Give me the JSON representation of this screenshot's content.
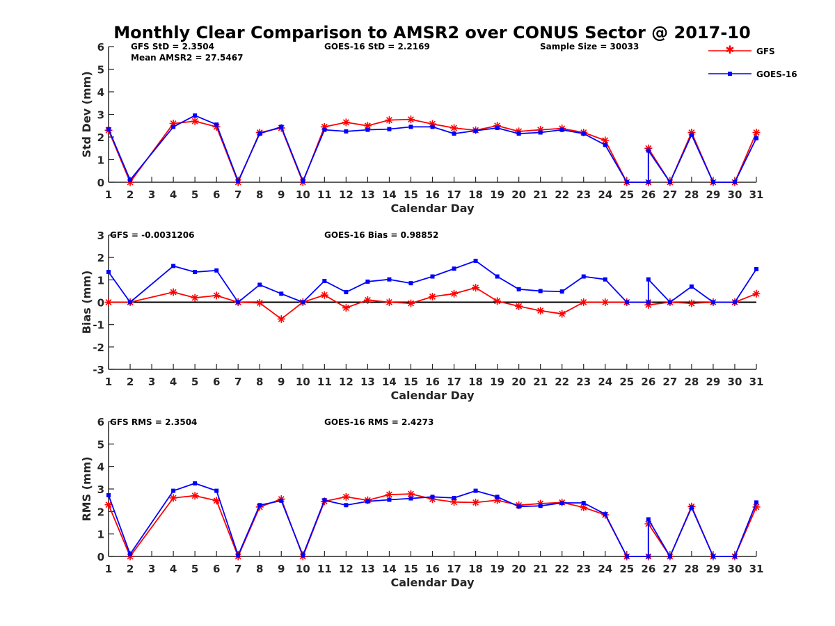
{
  "figure": {
    "title": "Monthly Clear Comparison to AMSR2 over CONUS Sector @ 2017-10"
  },
  "legend": {
    "placement": "top-right",
    "entries": [
      {
        "label": "GFS",
        "color": "#ff0000",
        "marker": "asterisk"
      },
      {
        "label": "GOES-16",
        "color": "#0000ff",
        "marker": "square"
      }
    ]
  },
  "chart_data": [
    {
      "type": "line",
      "xlabel": "Calendar Day",
      "ylabel": "Std Dev (mm)",
      "xlim": [
        1,
        31
      ],
      "ylim": [
        0,
        6
      ],
      "x_ticks": [
        1,
        2,
        3,
        4,
        5,
        6,
        7,
        8,
        9,
        10,
        11,
        12,
        13,
        14,
        15,
        16,
        17,
        18,
        19,
        20,
        21,
        22,
        23,
        24,
        25,
        26,
        27,
        28,
        29,
        30,
        31
      ],
      "y_ticks": [
        0,
        1,
        2,
        3,
        4,
        5,
        6
      ],
      "zero_line": false,
      "annotations": [
        "GFS StD = 2.3504",
        "Mean AMSR2 = 27.5467",
        "GOES-16 StD = 2.2169",
        "Sample Size = 30033"
      ],
      "series": [
        {
          "name": "GFS",
          "color": "#ff0000",
          "marker": "asterisk",
          "points": [
            [
              1,
              2.3
            ],
            [
              2,
              0.0
            ],
            [
              4,
              2.6
            ],
            [
              5,
              2.7
            ],
            [
              6,
              2.45
            ],
            [
              7,
              0.0
            ],
            [
              8,
              2.2
            ],
            [
              9,
              2.4
            ],
            [
              10,
              0.0
            ],
            [
              11,
              2.45
            ],
            [
              12,
              2.65
            ],
            [
              13,
              2.5
            ],
            [
              14,
              2.75
            ],
            [
              15,
              2.78
            ],
            [
              16,
              2.58
            ],
            [
              17,
              2.4
            ],
            [
              18,
              2.3
            ],
            [
              19,
              2.5
            ],
            [
              20,
              2.25
            ],
            [
              21,
              2.32
            ],
            [
              22,
              2.38
            ],
            [
              23,
              2.2
            ],
            [
              24,
              1.85
            ],
            [
              25,
              0.0
            ],
            [
              26,
              0.0
            ],
            [
              26,
              1.5
            ],
            [
              27,
              0.0
            ],
            [
              28,
              2.2
            ],
            [
              29,
              0.0
            ],
            [
              30,
              0.0
            ],
            [
              31,
              2.2
            ]
          ]
        },
        {
          "name": "GOES-16",
          "color": "#0000ff",
          "marker": "square",
          "points": [
            [
              1,
              2.35
            ],
            [
              2,
              0.1
            ],
            [
              4,
              2.45
            ],
            [
              5,
              2.95
            ],
            [
              6,
              2.55
            ],
            [
              7,
              0.05
            ],
            [
              8,
              2.15
            ],
            [
              9,
              2.45
            ],
            [
              10,
              0.05
            ],
            [
              11,
              2.32
            ],
            [
              12,
              2.25
            ],
            [
              13,
              2.32
            ],
            [
              14,
              2.35
            ],
            [
              15,
              2.45
            ],
            [
              16,
              2.45
            ],
            [
              17,
              2.15
            ],
            [
              18,
              2.28
            ],
            [
              19,
              2.4
            ],
            [
              20,
              2.15
            ],
            [
              21,
              2.2
            ],
            [
              22,
              2.32
            ],
            [
              23,
              2.15
            ],
            [
              24,
              1.65
            ],
            [
              25,
              0.0
            ],
            [
              26,
              0.0
            ],
            [
              26,
              1.4
            ],
            [
              27,
              0.0
            ],
            [
              28,
              2.1
            ],
            [
              29,
              0.0
            ],
            [
              30,
              0.0
            ],
            [
              31,
              1.95
            ]
          ]
        }
      ]
    },
    {
      "type": "line",
      "xlabel": "Calendar Day",
      "ylabel": "Bias (mm)",
      "xlim": [
        1,
        31
      ],
      "ylim": [
        -3,
        3
      ],
      "x_ticks": [
        1,
        2,
        3,
        4,
        5,
        6,
        7,
        8,
        9,
        10,
        11,
        12,
        13,
        14,
        15,
        16,
        17,
        18,
        19,
        20,
        21,
        22,
        23,
        24,
        25,
        26,
        27,
        28,
        29,
        30,
        31
      ],
      "y_ticks": [
        -3,
        -2,
        -1,
        0,
        1,
        2,
        3
      ],
      "zero_line": true,
      "annotations": [
        "GFS = -0.0031206",
        "GOES-16 Bias = 0.98852"
      ],
      "series": [
        {
          "name": "GFS",
          "color": "#ff0000",
          "marker": "asterisk",
          "points": [
            [
              1,
              0.0
            ],
            [
              2,
              0.0
            ],
            [
              4,
              0.45
            ],
            [
              5,
              0.2
            ],
            [
              6,
              0.3
            ],
            [
              7,
              0.0
            ],
            [
              8,
              -0.03
            ],
            [
              9,
              -0.75
            ],
            [
              10,
              0.0
            ],
            [
              11,
              0.32
            ],
            [
              12,
              -0.25
            ],
            [
              13,
              0.1
            ],
            [
              14,
              0.0
            ],
            [
              15,
              -0.05
            ],
            [
              16,
              0.25
            ],
            [
              17,
              0.38
            ],
            [
              18,
              0.65
            ],
            [
              19,
              0.05
            ],
            [
              20,
              -0.18
            ],
            [
              21,
              -0.38
            ],
            [
              22,
              -0.52
            ],
            [
              23,
              0.0
            ],
            [
              24,
              0.0
            ],
            [
              25,
              0.0
            ],
            [
              26,
              0.0
            ],
            [
              26,
              -0.12
            ],
            [
              27,
              0.0
            ],
            [
              28,
              -0.05
            ],
            [
              29,
              0.0
            ],
            [
              30,
              0.0
            ],
            [
              31,
              0.38
            ]
          ]
        },
        {
          "name": "GOES-16",
          "color": "#0000ff",
          "marker": "square",
          "points": [
            [
              1,
              1.35
            ],
            [
              2,
              0.0
            ],
            [
              4,
              1.62
            ],
            [
              5,
              1.35
            ],
            [
              6,
              1.42
            ],
            [
              7,
              0.0
            ],
            [
              8,
              0.78
            ],
            [
              9,
              0.38
            ],
            [
              10,
              0.0
            ],
            [
              11,
              0.95
            ],
            [
              12,
              0.45
            ],
            [
              13,
              0.92
            ],
            [
              14,
              1.02
            ],
            [
              15,
              0.85
            ],
            [
              16,
              1.15
            ],
            [
              17,
              1.5
            ],
            [
              18,
              1.85
            ],
            [
              19,
              1.15
            ],
            [
              20,
              0.58
            ],
            [
              21,
              0.5
            ],
            [
              22,
              0.48
            ],
            [
              23,
              1.15
            ],
            [
              24,
              1.02
            ],
            [
              25,
              0.0
            ],
            [
              26,
              0.0
            ],
            [
              26,
              1.02
            ],
            [
              27,
              0.0
            ],
            [
              28,
              0.7
            ],
            [
              29,
              0.0
            ],
            [
              30,
              0.0
            ],
            [
              31,
              1.48
            ]
          ]
        }
      ]
    },
    {
      "type": "line",
      "xlabel": "Calendar Day",
      "ylabel": "RMS (mm)",
      "xlim": [
        1,
        31
      ],
      "ylim": [
        0,
        6
      ],
      "x_ticks": [
        1,
        2,
        3,
        4,
        5,
        6,
        7,
        8,
        9,
        10,
        11,
        12,
        13,
        14,
        15,
        16,
        17,
        18,
        19,
        20,
        21,
        22,
        23,
        24,
        25,
        26,
        27,
        28,
        29,
        30,
        31
      ],
      "y_ticks": [
        0,
        1,
        2,
        3,
        4,
        5,
        6
      ],
      "zero_line": false,
      "annotations": [
        "GFS RMS = 2.3504",
        "GOES-16 RMS = 2.4273"
      ],
      "series": [
        {
          "name": "GFS",
          "color": "#ff0000",
          "marker": "asterisk",
          "points": [
            [
              1,
              2.3
            ],
            [
              2,
              0.0
            ],
            [
              4,
              2.6
            ],
            [
              5,
              2.7
            ],
            [
              6,
              2.48
            ],
            [
              7,
              0.0
            ],
            [
              8,
              2.2
            ],
            [
              9,
              2.55
            ],
            [
              10,
              0.0
            ],
            [
              11,
              2.45
            ],
            [
              12,
              2.65
            ],
            [
              13,
              2.5
            ],
            [
              14,
              2.75
            ],
            [
              15,
              2.78
            ],
            [
              16,
              2.55
            ],
            [
              17,
              2.42
            ],
            [
              18,
              2.4
            ],
            [
              19,
              2.5
            ],
            [
              20,
              2.28
            ],
            [
              21,
              2.35
            ],
            [
              22,
              2.4
            ],
            [
              23,
              2.18
            ],
            [
              24,
              1.85
            ],
            [
              25,
              0.0
            ],
            [
              26,
              0.0
            ],
            [
              26,
              1.45
            ],
            [
              27,
              0.0
            ],
            [
              28,
              2.22
            ],
            [
              29,
              0.0
            ],
            [
              30,
              0.0
            ],
            [
              31,
              2.2
            ]
          ]
        },
        {
          "name": "GOES-16",
          "color": "#0000ff",
          "marker": "square",
          "points": [
            [
              1,
              2.72
            ],
            [
              2,
              0.1
            ],
            [
              4,
              2.92
            ],
            [
              5,
              3.25
            ],
            [
              6,
              2.92
            ],
            [
              7,
              0.05
            ],
            [
              8,
              2.28
            ],
            [
              9,
              2.48
            ],
            [
              10,
              0.05
            ],
            [
              11,
              2.5
            ],
            [
              12,
              2.28
            ],
            [
              13,
              2.45
            ],
            [
              14,
              2.52
            ],
            [
              15,
              2.58
            ],
            [
              16,
              2.65
            ],
            [
              17,
              2.6
            ],
            [
              18,
              2.92
            ],
            [
              19,
              2.65
            ],
            [
              20,
              2.22
            ],
            [
              21,
              2.25
            ],
            [
              22,
              2.38
            ],
            [
              23,
              2.38
            ],
            [
              24,
              1.88
            ],
            [
              25,
              0.0
            ],
            [
              26,
              0.0
            ],
            [
              26,
              1.65
            ],
            [
              27,
              0.0
            ],
            [
              28,
              2.18
            ],
            [
              29,
              0.0
            ],
            [
              30,
              0.0
            ],
            [
              31,
              2.4
            ]
          ]
        }
      ]
    }
  ]
}
